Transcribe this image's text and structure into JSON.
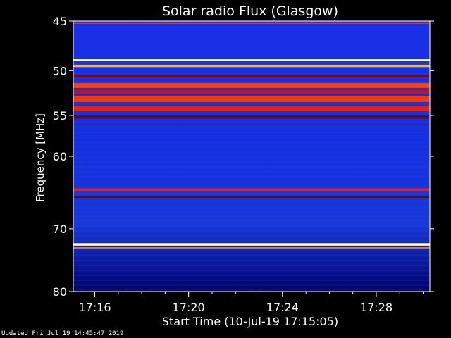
{
  "chart_data": {
    "type": "heatmap",
    "title": "Solar radio Flux (Glasgow)",
    "xlabel": "Start Time (10-Jul-19 17:15:05)",
    "ylabel": "Frequency [MHz]",
    "x_ticks": [
      "17:16",
      "17:20",
      "17:24",
      "17:28"
    ],
    "y_ticks": [
      45,
      50,
      55,
      60,
      70,
      80
    ],
    "y_scale": "log",
    "ylim": [
      45,
      80
    ],
    "bands": [
      {
        "freq": 45.2,
        "width": 0.15,
        "color": "#ff2a00"
      },
      {
        "freq": 48.9,
        "width": 0.2,
        "color": "#ffff99"
      },
      {
        "freq": 49.5,
        "width": 0.25,
        "color": "#ffbb00"
      },
      {
        "freq": 50.6,
        "width": 0.3,
        "color": "#8a0000"
      },
      {
        "freq": 51.6,
        "width": 0.55,
        "color": "#ff4400"
      },
      {
        "freq": 52.3,
        "width": 0.4,
        "color": "#cc1100"
      },
      {
        "freq": 53.1,
        "width": 0.7,
        "color": "#ff3a00"
      },
      {
        "freq": 54.2,
        "width": 0.6,
        "color": "#ee2200"
      },
      {
        "freq": 55.2,
        "width": 0.35,
        "color": "#700000"
      },
      {
        "freq": 56.0,
        "width": 0.3,
        "color": "#2a2ab8"
      },
      {
        "freq": 64.4,
        "width": 0.35,
        "color": "#ff1800"
      },
      {
        "freq": 65.4,
        "width": 0.25,
        "color": "#5a0000"
      },
      {
        "freq": 72.4,
        "width": 0.45,
        "color": "#ffffcc"
      },
      {
        "freq": 72.9,
        "width": 0.2,
        "color": "#ff7700"
      }
    ],
    "colors": {
      "background_blue": "#1428d8",
      "dark_blue": "#0a0a8a",
      "black_edge": "#000030"
    }
  },
  "footer": {
    "updated": "Updated Fri Jul 19 14:45:47 2019"
  }
}
